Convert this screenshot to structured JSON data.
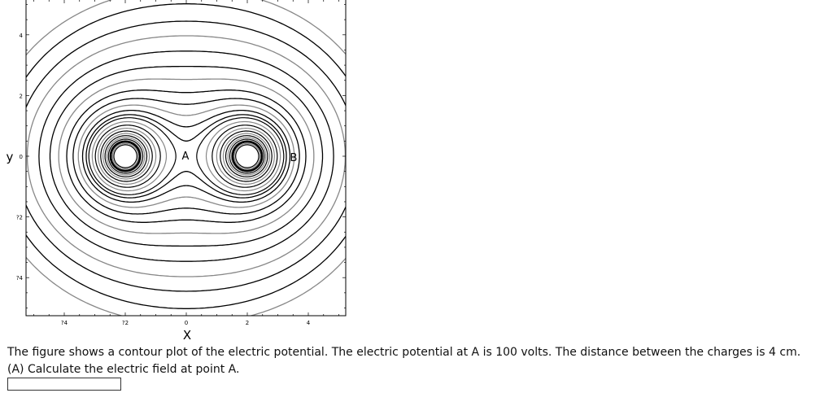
{
  "figure": {
    "x_label": "X",
    "y_label": "y",
    "xticks": [
      "?4",
      "?2",
      "0",
      "2",
      "4"
    ],
    "yticks": [
      "4",
      "2",
      "0",
      "?2",
      "?4"
    ],
    "points": [
      "A",
      "B"
    ]
  },
  "question": {
    "text": "The figure shows a contour plot of the electric potential. The electric potential at A is 100 volts. The distance between the charges is 4 cm.",
    "part": "(A) Calculate the electric field at point A."
  }
}
